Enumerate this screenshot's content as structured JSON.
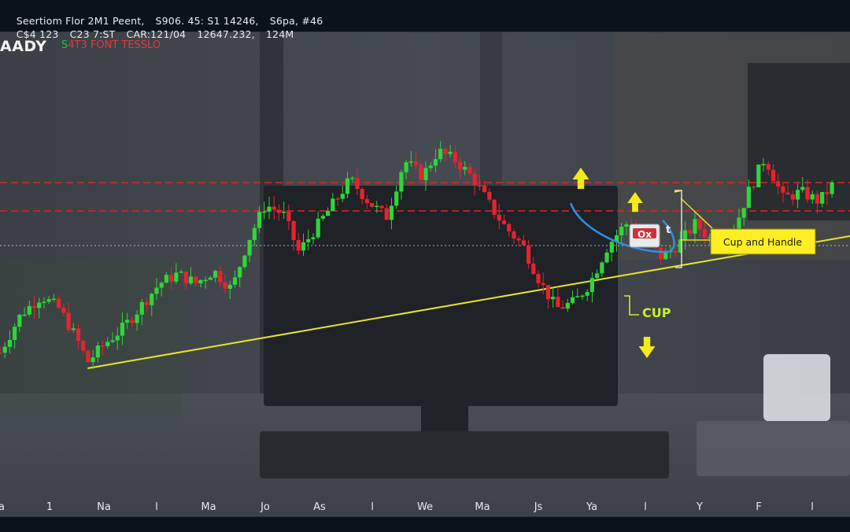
{
  "header": {
    "line1": [
      "Seertiom Flor 2M1 Peent,",
      "S906. 45: S1 14246,",
      "S6pa, #46"
    ],
    "line2": [
      "C$4 123",
      "C23 7:ST",
      "CAR:121/04",
      "12647.232,",
      "124M"
    ]
  },
  "brand": {
    "name": "AADY",
    "sub_accent": "S",
    "sub_rest": "4T3 FONT TESSLO"
  },
  "annotations": {
    "cup_label": "CUP",
    "handle_label": "Cup and Handle",
    "badge_label": "Ox",
    "peak_text": "t"
  },
  "colors": {
    "bull": "#2ed63a",
    "bear": "#e8232e",
    "resistance": "#e02424",
    "trendline": "#e6e62a",
    "annotation": "#f3ea1b",
    "arc": "#2f8fe8",
    "handle_box": "#ffee23"
  },
  "chart_data": {
    "type": "candlestick",
    "x_tick_labels": [
      "a",
      "1",
      "Na",
      "l",
      "Ma",
      "Jo",
      "As",
      "l",
      "We",
      "Ma",
      "Js",
      "Ya",
      "l",
      "Y",
      "F",
      "l"
    ],
    "price_range": [
      0,
      100
    ],
    "levels": [
      {
        "style": "dashed",
        "color": "red",
        "value": 72
      },
      {
        "style": "dashed",
        "color": "red",
        "value": 63
      },
      {
        "style": "dotted",
        "color": "white",
        "value": 52
      }
    ],
    "trendline": [
      [
        3.4,
        13
      ],
      [
        33.0,
        55
      ]
    ],
    "candles_path": [
      [
        0.0,
        18
      ],
      [
        0.8,
        30
      ],
      [
        1.6,
        36
      ],
      [
        2.3,
        32
      ],
      [
        3.0,
        22
      ],
      [
        3.4,
        15
      ],
      [
        4.1,
        21
      ],
      [
        4.8,
        26
      ],
      [
        5.5,
        33
      ],
      [
        6.2,
        40
      ],
      [
        6.9,
        43
      ],
      [
        7.6,
        40
      ],
      [
        8.3,
        44
      ],
      [
        9.0,
        38
      ],
      [
        9.6,
        53
      ],
      [
        10.3,
        65
      ],
      [
        11.0,
        62
      ],
      [
        11.6,
        50
      ],
      [
        12.3,
        58
      ],
      [
        13.0,
        66
      ],
      [
        13.6,
        73
      ],
      [
        14.3,
        66
      ],
      [
        15.0,
        61
      ],
      [
        15.7,
        79
      ],
      [
        16.4,
        74
      ],
      [
        17.0,
        82
      ],
      [
        17.7,
        79
      ],
      [
        18.4,
        73
      ],
      [
        19.0,
        65
      ],
      [
        19.6,
        58
      ],
      [
        20.3,
        52
      ],
      [
        21.0,
        40
      ],
      [
        21.6,
        32
      ],
      [
        22.3,
        34
      ],
      [
        22.9,
        40
      ],
      [
        23.6,
        52
      ],
      [
        24.3,
        59
      ],
      [
        25.0,
        55
      ],
      [
        25.7,
        48
      ],
      [
        26.4,
        53
      ],
      [
        27.0,
        59
      ],
      [
        27.7,
        53
      ],
      [
        28.4,
        55
      ],
      [
        29.0,
        68
      ],
      [
        29.7,
        80
      ],
      [
        30.4,
        67
      ],
      [
        31.1,
        69
      ],
      [
        31.8,
        66
      ],
      [
        32.4,
        72
      ]
    ]
  }
}
